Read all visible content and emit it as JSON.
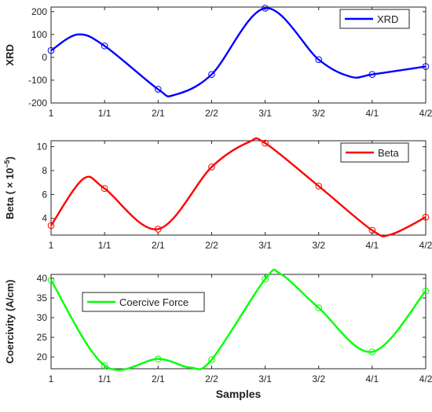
{
  "chart_data": [
    {
      "type": "line",
      "categories": [
        "1",
        "1/1",
        "2/1",
        "2/2",
        "3/1",
        "3/2",
        "4/1",
        "4/2"
      ],
      "series": [
        {
          "name": "XRD",
          "values": [
            30,
            50,
            -140,
            -75,
            215,
            -10,
            -75,
            -40
          ],
          "color": "#0000ff"
        }
      ],
      "ylabel": "XRD",
      "ylim": [
        -200,
        220
      ],
      "yticks": [
        -200,
        -100,
        0,
        100,
        200
      ],
      "legend": "top-right",
      "curve": [
        [
          0,
          30
        ],
        [
          0.5,
          100
        ],
        [
          1,
          50
        ],
        [
          2,
          -140
        ],
        [
          2.3,
          -165
        ],
        [
          3,
          -75
        ],
        [
          4,
          215
        ],
        [
          5,
          -10
        ],
        [
          5.6,
          -85
        ],
        [
          6,
          -75
        ],
        [
          7,
          -40
        ]
      ]
    },
    {
      "type": "line",
      "categories": [
        "1",
        "1/1",
        "2/1",
        "2/2",
        "3/1",
        "3/2",
        "4/1",
        "4/2"
      ],
      "series": [
        {
          "name": "Beta",
          "values": [
            3.4,
            6.5,
            3.1,
            8.3,
            10.3,
            6.7,
            3.0,
            4.1
          ],
          "color": "#ff0000"
        }
      ],
      "ylabel": "Beta  ( × 10",
      "ylabel_sup": "−5",
      "ylabel_end": ")",
      "ylim": [
        2.6,
        10.5
      ],
      "yticks": [
        4,
        6,
        8,
        10
      ],
      "legend": "top-right",
      "curve": [
        [
          0,
          3.4
        ],
        [
          0.6,
          7.3
        ],
        [
          1,
          6.5
        ],
        [
          2,
          3.1
        ],
        [
          3,
          8.3
        ],
        [
          3.7,
          10.4
        ],
        [
          4,
          10.3
        ],
        [
          5,
          6.7
        ],
        [
          6,
          3.0
        ],
        [
          6.35,
          2.65
        ],
        [
          7,
          4.1
        ]
      ]
    },
    {
      "type": "line",
      "categories": [
        "1",
        "1/1",
        "2/1",
        "2/2",
        "3/1",
        "3/2",
        "4/1",
        "4/2"
      ],
      "series": [
        {
          "name": "Coercive Force",
          "values": [
            39.5,
            17.8,
            19.5,
            19.3,
            39.8,
            32.5,
            21.3,
            36.8
          ],
          "color": "#00ff00"
        }
      ],
      "ylabel": "Coercivity (A/cm)",
      "xlabel": "Samples",
      "ylim": [
        17,
        41
      ],
      "yticks": [
        20,
        25,
        30,
        35,
        40
      ],
      "legend": "top-left",
      "curve": [
        [
          0,
          39.5
        ],
        [
          1,
          17.8
        ],
        [
          2,
          19.5
        ],
        [
          2.6,
          17.3
        ],
        [
          3,
          19.3
        ],
        [
          4,
          39.8
        ],
        [
          4.3,
          41
        ],
        [
          5,
          32.5
        ],
        [
          6,
          21.3
        ],
        [
          7,
          36.8
        ]
      ]
    }
  ]
}
